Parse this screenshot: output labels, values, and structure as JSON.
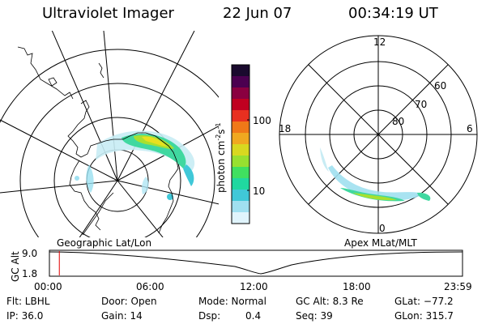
{
  "header": {
    "instrument": "Ultraviolet Imager",
    "date": "22 Jun 07",
    "time": "00:34:19 UT"
  },
  "panels": {
    "left_label": "Geographic Lat/Lon",
    "right_label": "Apex MLat/MLT"
  },
  "colorbar": {
    "title_parts": {
      "base": "photon cm",
      "exp1": "-2",
      "mid": "s",
      "exp2": "-1"
    },
    "ticks": [
      "100",
      "10"
    ],
    "scale": "log",
    "colors": [
      "#1a0a2e",
      "#4b0050",
      "#8a0040",
      "#c00020",
      "#e83020",
      "#f07818",
      "#f0a820",
      "#d8d820",
      "#98e030",
      "#40e060",
      "#20d8a0",
      "#40c8d8",
      "#a0e0f0",
      "#e0f4fc"
    ]
  },
  "right_polar": {
    "mlt_labels": {
      "top": "12",
      "left": "18",
      "right": "6",
      "bottom": "0"
    },
    "lat_labels": [
      "60",
      "70",
      "80"
    ]
  },
  "timeline": {
    "ylabel": "GC Alt",
    "yticks": [
      "9.0",
      "1.8"
    ],
    "xticks": [
      "00:00",
      "06:00",
      "12:00",
      "18:00",
      "23:59"
    ],
    "marker_fraction": 0.024,
    "marker_color": "#e00000"
  },
  "info": {
    "flt": "Flt: LBHL",
    "door": "Door: Open",
    "mode": "Mode: Normal",
    "gc_alt": "GC Alt: 8.3 Re",
    "glat": "GLat: −77.2",
    "ip": "IP: 36.0",
    "gain": "Gain: 14",
    "dsp_label": "Dsp:",
    "dsp_value": "0.4",
    "seq": "Seq: 39",
    "glon": "GLon: 315.7"
  }
}
